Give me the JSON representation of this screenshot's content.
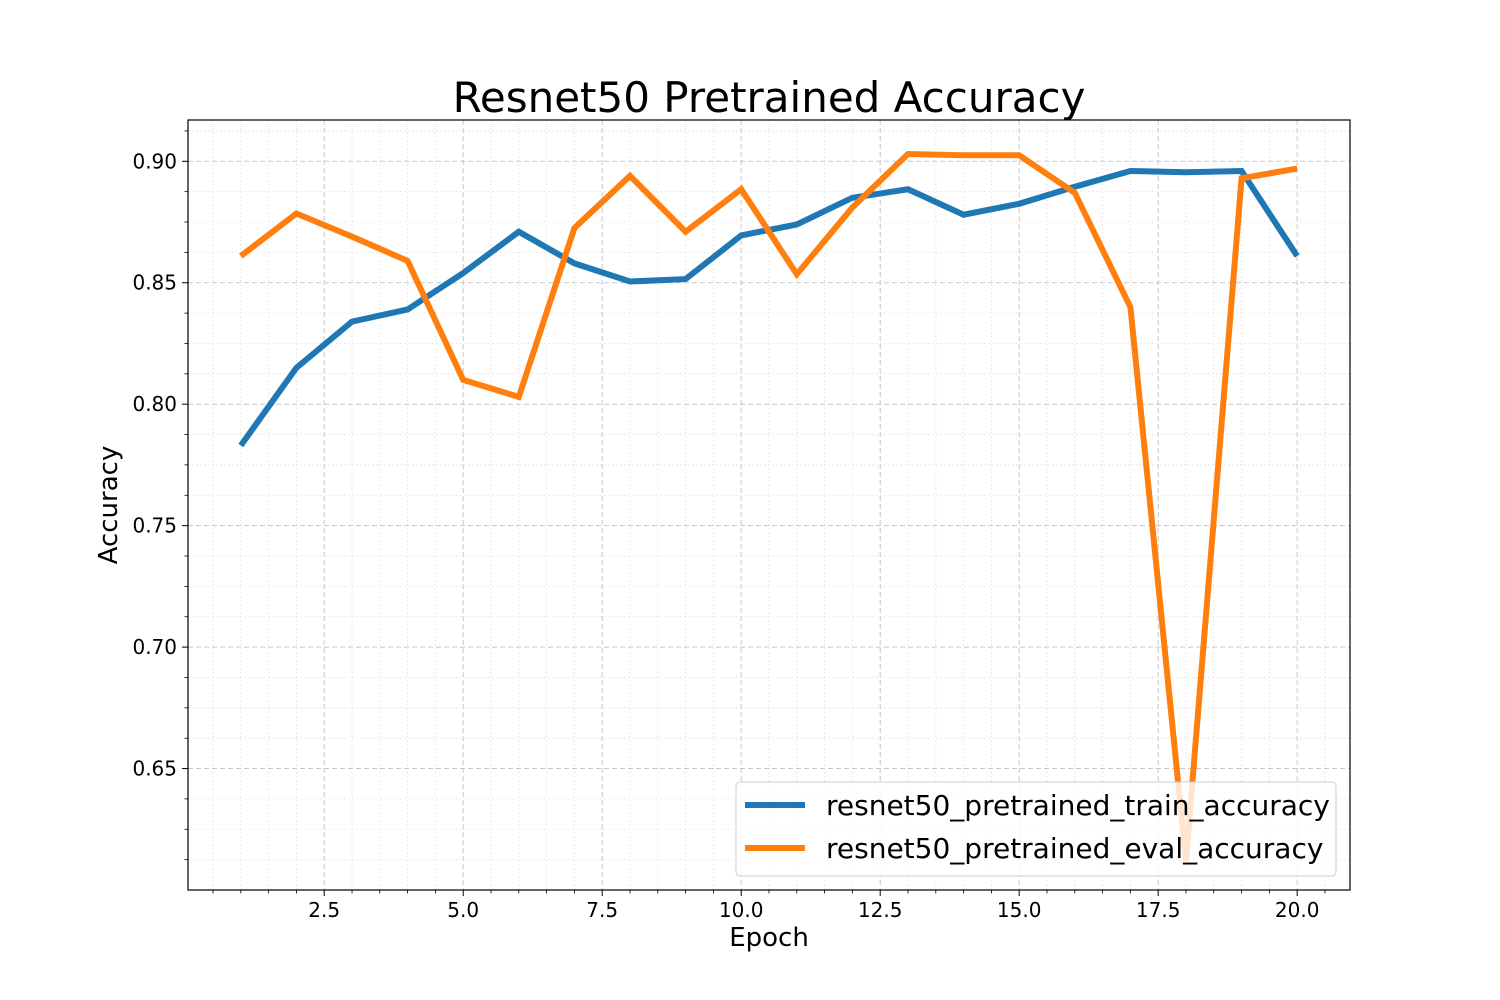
{
  "chart_data": {
    "type": "line",
    "title": "Resnet50 Pretrained Accuracy",
    "xlabel": "Epoch",
    "ylabel": "Accuracy",
    "xlim": [
      0.05,
      20.95
    ],
    "ylim": [
      0.6,
      0.917
    ],
    "x_ticks": [
      2.5,
      5.0,
      7.5,
      10.0,
      12.5,
      15.0,
      17.5,
      20.0
    ],
    "x_tick_labels": [
      "2.5",
      "5.0",
      "7.5",
      "10.0",
      "12.5",
      "15.0",
      "17.5",
      "20.0"
    ],
    "y_ticks": [
      0.65,
      0.7,
      0.75,
      0.8,
      0.85,
      0.9
    ],
    "y_tick_labels": [
      "0.65",
      "0.70",
      "0.75",
      "0.80",
      "0.85",
      "0.90"
    ],
    "grid": true,
    "minor_grid": true,
    "legend_position": "lower-right",
    "x": [
      1,
      2,
      3,
      4,
      5,
      6,
      7,
      8,
      9,
      10,
      11,
      12,
      13,
      14,
      15,
      16,
      17,
      18,
      19,
      20
    ],
    "series": [
      {
        "name": "resnet50_pretrained_train_accuracy",
        "color": "#1f77b4",
        "values": [
          0.783,
          0.815,
          0.834,
          0.839,
          0.854,
          0.871,
          0.858,
          0.8505,
          0.8515,
          0.8695,
          0.874,
          0.885,
          0.8885,
          0.878,
          0.8825,
          0.8895,
          0.896,
          0.8955,
          0.896,
          0.861
        ]
      },
      {
        "name": "resnet50_pretrained_eval_accuracy",
        "color": "#ff7f0e",
        "values": [
          0.861,
          0.8785,
          0.869,
          0.859,
          0.81,
          0.803,
          0.8725,
          0.894,
          0.871,
          0.8885,
          0.8535,
          0.881,
          0.903,
          0.9025,
          0.9025,
          0.887,
          0.84,
          0.612,
          0.893,
          0.897
        ]
      }
    ]
  }
}
